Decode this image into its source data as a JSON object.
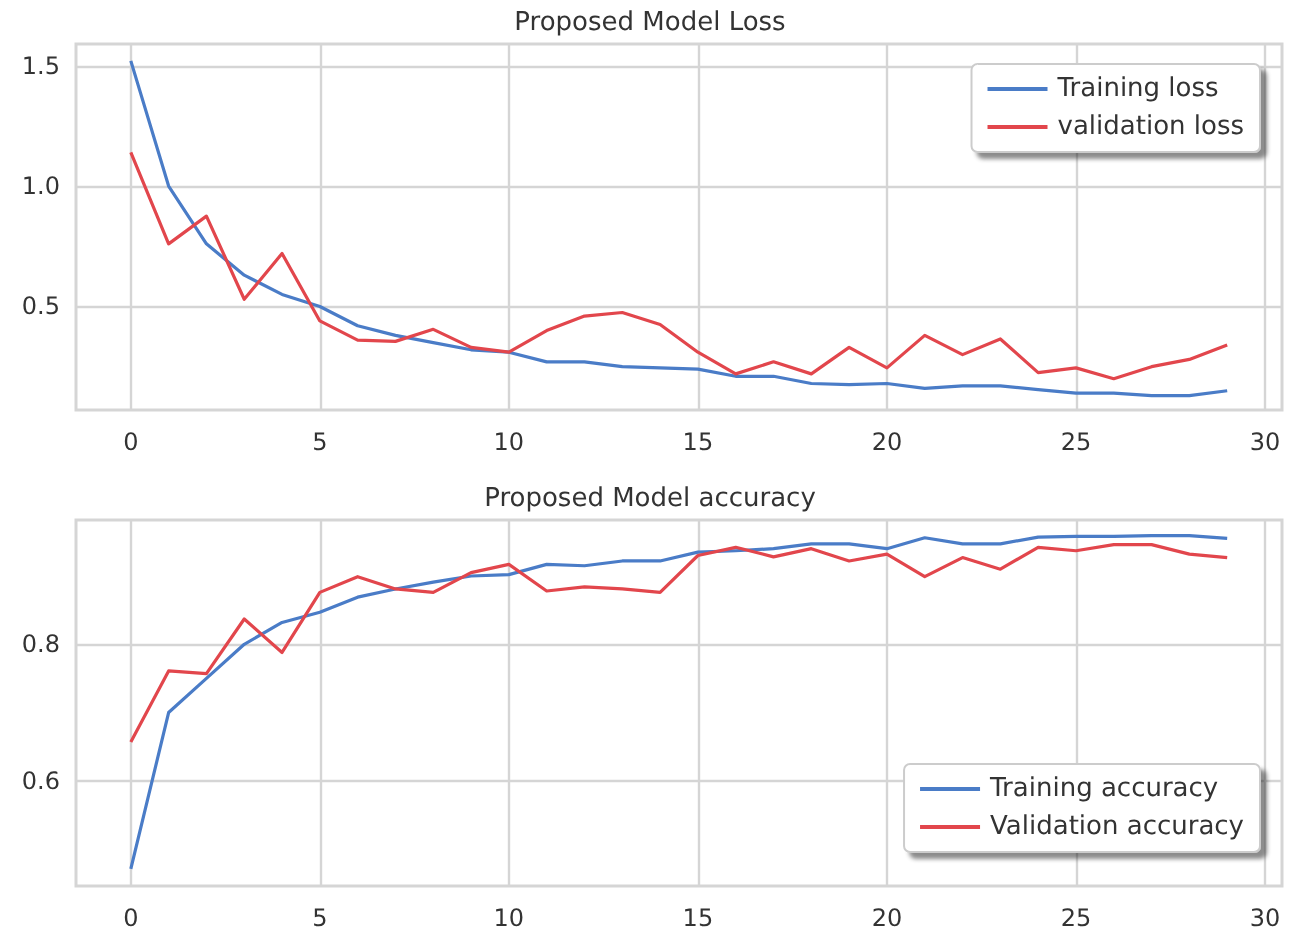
{
  "chart_data": [
    {
      "type": "line",
      "title": "Proposed Model Loss",
      "x": [
        0,
        1,
        2,
        3,
        4,
        5,
        6,
        7,
        8,
        9,
        10,
        11,
        12,
        13,
        14,
        15,
        16,
        17,
        18,
        19,
        20,
        21,
        22,
        23,
        24,
        25,
        26,
        27,
        28,
        29
      ],
      "series": [
        {
          "name": "Training loss",
          "color": "#4a7cc7",
          "values": [
            1.52,
            1.0,
            0.76,
            0.63,
            0.55,
            0.5,
            0.42,
            0.38,
            0.35,
            0.32,
            0.31,
            0.27,
            0.27,
            0.25,
            0.245,
            0.24,
            0.21,
            0.21,
            0.18,
            0.175,
            0.18,
            0.16,
            0.17,
            0.17,
            0.155,
            0.14,
            0.14,
            0.13,
            0.13,
            0.15
          ]
        },
        {
          "name": "validation loss",
          "color": "#e2464c",
          "values": [
            1.14,
            0.76,
            0.875,
            0.53,
            0.72,
            0.44,
            0.36,
            0.355,
            0.405,
            0.33,
            0.31,
            0.4,
            0.46,
            0.475,
            0.425,
            0.31,
            0.22,
            0.27,
            0.22,
            0.33,
            0.245,
            0.38,
            0.3,
            0.365,
            0.225,
            0.245,
            0.2,
            0.25,
            0.28,
            0.34
          ]
        }
      ],
      "xlim": [
        -1.45,
        30.45
      ],
      "xticks": [
        0,
        5,
        10,
        15,
        20,
        25,
        30
      ],
      "ylim": [
        0.07,
        1.59
      ],
      "yticks": [
        0.5,
        {
          "value": 1,
          "label": "1.0"
        },
        1.5
      ],
      "grid": true,
      "legend": "top right",
      "marker": "none",
      "line_style": "solid"
    },
    {
      "type": "line",
      "title": "Proposed Model accuracy",
      "x": [
        0,
        1,
        2,
        3,
        4,
        5,
        6,
        7,
        8,
        9,
        10,
        11,
        12,
        13,
        14,
        15,
        16,
        17,
        18,
        19,
        20,
        21,
        22,
        23,
        24,
        25,
        26,
        27,
        28,
        29
      ],
      "series": [
        {
          "name": "Training accuracy",
          "color": "#4a7cc7",
          "values": [
            0.471,
            0.7,
            0.75,
            0.8,
            0.832,
            0.847,
            0.869,
            0.881,
            0.891,
            0.9,
            0.902,
            0.917,
            0.915,
            0.922,
            0.922,
            0.935,
            0.937,
            0.94,
            0.947,
            0.947,
            0.94,
            0.956,
            0.947,
            0.947,
            0.957,
            0.958,
            0.958,
            0.959,
            0.959,
            0.955
          ]
        },
        {
          "name": "Validation accuracy",
          "color": "#e2464c",
          "values": [
            0.657,
            0.761,
            0.757,
            0.837,
            0.788,
            0.876,
            0.899,
            0.881,
            0.876,
            0.905,
            0.917,
            0.878,
            0.884,
            0.881,
            0.876,
            0.93,
            0.942,
            0.928,
            0.94,
            0.922,
            0.932,
            0.899,
            0.927,
            0.91,
            0.942,
            0.937,
            0.946,
            0.946,
            0.932,
            0.927
          ]
        }
      ],
      "xlim": [
        -1.45,
        30.45
      ],
      "xticks": [
        0,
        5,
        10,
        15,
        20,
        25,
        30
      ],
      "ylim": [
        0.446,
        0.982
      ],
      "yticks": [
        0.6,
        0.8
      ],
      "grid": true,
      "legend": "bottom right",
      "marker": "none",
      "line_style": "solid"
    }
  ]
}
